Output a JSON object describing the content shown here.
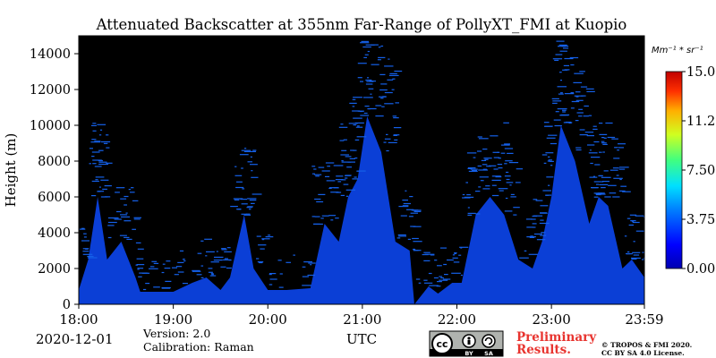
{
  "chart_data": {
    "type": "heatmap",
    "title": "Attenuated Backscatter at 355nm Far-Range of PollyXT_FMI at Kuopio",
    "xlabel": "UTC",
    "ylabel": "Height (m)",
    "x_ticks": [
      "18:00",
      "19:00",
      "20:00",
      "21:00",
      "22:00",
      "23:00",
      "23:59"
    ],
    "x_range": [
      "18:00",
      "23:59"
    ],
    "y_ticks": [
      0,
      2000,
      4000,
      6000,
      8000,
      10000,
      12000,
      14000
    ],
    "ylim": [
      0,
      15000
    ],
    "colorbar": {
      "unit": "Mm⁻¹ * sr⁻¹",
      "ticks": [
        "0.00",
        "3.75",
        "7.50",
        "11.25",
        "15.00"
      ],
      "range": [
        0,
        15
      ],
      "colormap": "jet"
    },
    "colors": {
      "background": "#000000",
      "signal": "#0b3fd6",
      "signal_low": "#1560e8"
    },
    "profile_hours": [
      18.0,
      18.1,
      18.2,
      18.3,
      18.45,
      18.6,
      18.65,
      18.8,
      19.0,
      19.2,
      19.35,
      19.5,
      19.6,
      19.75,
      19.85,
      20.0,
      20.2,
      20.45,
      20.6,
      20.75,
      20.85,
      20.95,
      21.05,
      21.2,
      21.35,
      21.5,
      21.55,
      21.7,
      21.8,
      21.95,
      22.05,
      22.2,
      22.35,
      22.5,
      22.65,
      22.8,
      22.9,
      23.0,
      23.1,
      23.25,
      23.4,
      23.5,
      23.6,
      23.75,
      23.85,
      23.983
    ],
    "signal_top_m": [
      800,
      2500,
      6000,
      2500,
      3500,
      1500,
      700,
      700,
      700,
      1200,
      1500,
      800,
      1500,
      5000,
      2000,
      800,
      800,
      900,
      4500,
      3500,
      6000,
      7000,
      10500,
      8500,
      3500,
      3000,
      0,
      1000,
      600,
      1200,
      1200,
      5000,
      6000,
      5000,
      2500,
      2000,
      3500,
      6000,
      10000,
      8000,
      4500,
      6000,
      5500,
      2000,
      2500,
      1500
    ]
  },
  "footer": {
    "date": "2020-12-01",
    "version": "Version: 2.0",
    "calibration": "Calibration: Raman",
    "utc": "UTC",
    "cc_cc": "cc",
    "cc_by": "BY",
    "cc_sa": "SA",
    "prelim_line1": "Preliminary",
    "prelim_line2": "Results.",
    "copyright_line1": "© TROPOS & FMI 2020.",
    "copyright_line2": "CC BY SA 4.0 License."
  }
}
